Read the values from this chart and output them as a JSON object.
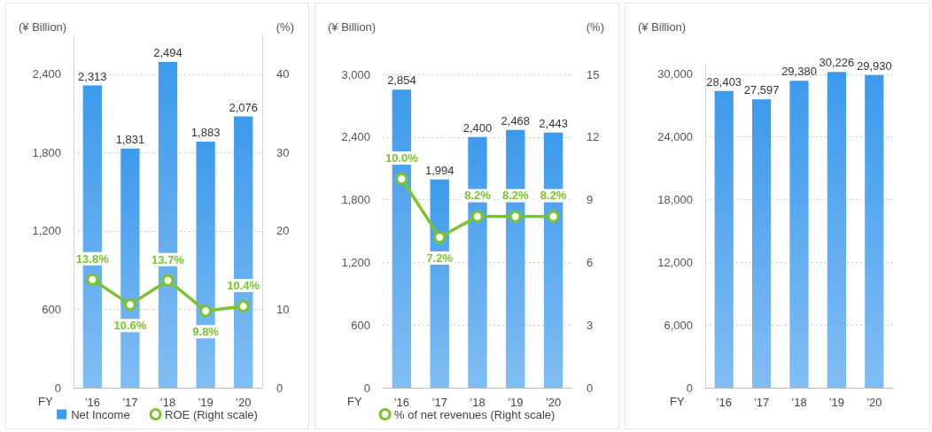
{
  "chart_data": [
    {
      "type": "bar",
      "ylabel": "(¥ Billion)",
      "y2label": "(%)",
      "xlabel": "FY",
      "categories": [
        "’16",
        "’17",
        "’18",
        "’19",
        "’20"
      ],
      "series": [
        {
          "name": "Net Income",
          "type": "bar",
          "color": "#3d9aec",
          "values": [
            2313,
            1831,
            2494,
            1883,
            2076
          ],
          "value_labels": [
            "2,313",
            "1,831",
            "2,494",
            "1,883",
            "2,076"
          ]
        },
        {
          "name": "ROE (Right scale)",
          "type": "line",
          "axis": "y2",
          "color": "#7cc42f",
          "values": [
            13.8,
            10.6,
            13.7,
            9.8,
            10.4
          ],
          "value_labels": [
            "13.8%",
            "10.6%",
            "13.7%",
            "9.8%",
            "10.4%"
          ]
        }
      ],
      "ylim": [
        0,
        2700
      ],
      "yticks": [
        {
          "value": 0,
          "label": "0"
        },
        600,
        {
          "value": 1200,
          "label": "1,200"
        },
        {
          "value": 1800,
          "label": "1,800"
        },
        {
          "value": 2400,
          "label": "2,400"
        }
      ],
      "y2lim": [
        0,
        45
      ],
      "y2ticks": [
        {
          "value": 0,
          "label": "0"
        },
        10,
        20,
        30,
        40
      ],
      "grid": "y",
      "legend": "bottom",
      "marker": "circle"
    },
    {
      "type": "bar",
      "ylabel": "(¥ Billion)",
      "y2label": "(%)",
      "xlabel": "FY",
      "categories": [
        "’16",
        "’17",
        "’18",
        "’19",
        "’20"
      ],
      "series": [
        {
          "type": "bar",
          "color": "#3d9aec",
          "values": [
            2854,
            1994,
            2400,
            2468,
            2443
          ],
          "value_labels": [
            "2,854",
            "1,994",
            "2,400",
            "2,468",
            "2,443"
          ]
        },
        {
          "name": "% of net revenues (Right scale)",
          "type": "line",
          "axis": "y2",
          "color": "#7cc42f",
          "values": [
            10.0,
            7.2,
            8.2,
            8.2,
            8.2
          ],
          "value_labels": [
            "10.0%",
            "7.2%",
            "8.2%",
            "8.2%",
            "8.2%"
          ]
        }
      ],
      "ylim": [
        0,
        3000
      ],
      "yticks": [
        {
          "value": 0,
          "label": "0"
        },
        600,
        {
          "value": 1200,
          "label": "1,200"
        },
        {
          "value": 1800,
          "label": "1,800"
        },
        {
          "value": 2400,
          "label": "2,400"
        },
        {
          "value": 3000,
          "label": "3,000"
        }
      ],
      "y2lim": [
        0,
        15
      ],
      "y2ticks": [
        {
          "value": 0,
          "label": "0"
        },
        3,
        6,
        9,
        12,
        15
      ],
      "grid": "y",
      "legend": "bottom",
      "marker": "circle"
    },
    {
      "type": "bar",
      "ylabel": "(¥ Billion)",
      "xlabel": "FY",
      "categories": [
        "’16",
        "’17",
        "’18",
        "’19",
        "’20"
      ],
      "color": "#3d9aec",
      "values": [
        28403,
        27597,
        29380,
        30226,
        29930
      ],
      "value_labels": [
        "28,403",
        "27,597",
        "29,380",
        "30,226",
        "29,930"
      ],
      "ylim": [
        0,
        31000
      ],
      "yticks": [
        {
          "value": 0,
          "label": "0"
        },
        {
          "value": 6000,
          "label": "6,000"
        },
        {
          "value": 12000,
          "label": "12,000"
        },
        {
          "value": 18000,
          "label": "18,000"
        },
        {
          "value": 24000,
          "label": "24,000"
        },
        {
          "value": 30000,
          "label": "30,000"
        }
      ],
      "grid": "y"
    }
  ]
}
